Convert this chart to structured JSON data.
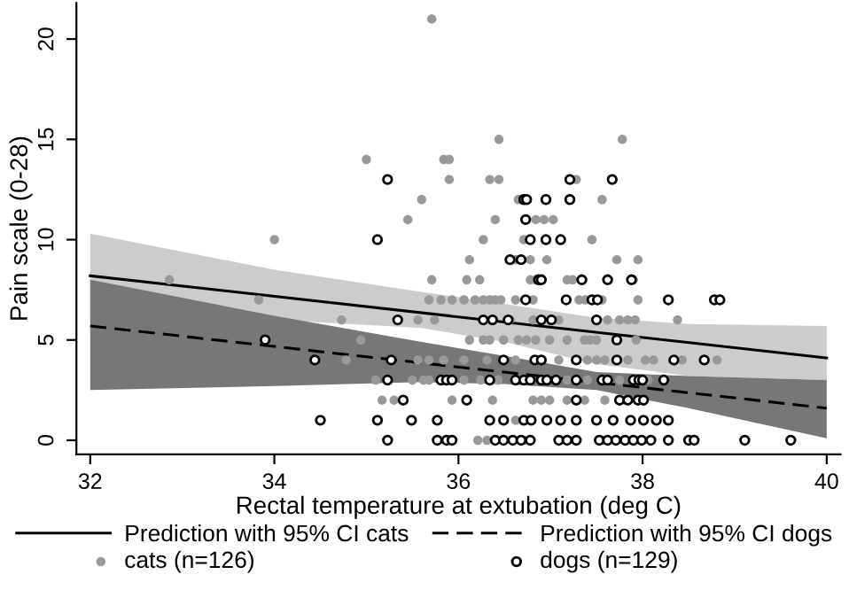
{
  "chart_data": {
    "type": "scatter",
    "xlabel": "Rectal temperature at extubation (deg C)",
    "ylabel": "Pain scale (0-28)",
    "xlim": [
      31.85,
      40.15
    ],
    "ylim": [
      -0.7,
      21.8
    ],
    "xticks": [
      32,
      34,
      36,
      38,
      40
    ],
    "yticks": [
      0,
      5,
      10,
      15,
      20
    ],
    "grid": false,
    "legend": "bottom",
    "series": [
      {
        "type": "line",
        "color": "#cccccc",
        "x": [
          32,
          34,
          35.6,
          36.5,
          37.5,
          38.5,
          40
        ],
        "values": [
          null,
          null,
          null,
          null,
          null,
          null,
          null
        ],
        "upper": [
          10.3,
          8.5,
          7.4,
          6.8,
          6.1,
          5.8,
          5.7
        ],
        "lower": [
          5.9,
          6.0,
          5.6,
          4.9,
          3.8,
          3.2,
          3.0
        ]
      },
      {
        "type": "line",
        "color": "#777777",
        "x": [
          32,
          34,
          35.6,
          36.5,
          37.5,
          38.5,
          40
        ],
        "values": [
          null,
          null,
          null,
          null,
          null,
          null,
          null
        ],
        "upper": [
          8.0,
          6.2,
          4.9,
          4.2,
          3.4,
          3.2,
          3.0
        ],
        "lower": [
          2.5,
          2.7,
          2.9,
          2.8,
          2.5,
          1.6,
          0.1
        ]
      },
      {
        "name": "Prediction with 95% CI cats",
        "type": "line",
        "line_style": "solid",
        "color": "#000000",
        "x": [
          32,
          40
        ],
        "values": [
          8.2,
          4.1
        ]
      },
      {
        "name": "Prediction with 95% CI dogs",
        "type": "line",
        "line_style": "dashed",
        "color": "#000000",
        "x": [
          32,
          40
        ],
        "values": [
          5.7,
          1.6
        ]
      },
      {
        "name": "cats (n=126)",
        "marker": "circle",
        "color": "#999999",
        "x": [
          32.86,
          34.0,
          33.83,
          34.73,
          34.94,
          34.78,
          35.0,
          35.45,
          35.6,
          35.1,
          35.17,
          35.3,
          35.56,
          35.56,
          35.5,
          35.62,
          35.71,
          36.44,
          37.78,
          35.84,
          35.9,
          35.9,
          36.34,
          36.44,
          37.28,
          36.65,
          37.56,
          36.4,
          36.84,
          36.93,
          37.03,
          36.27,
          36.71,
          37.45,
          36.12,
          36.62,
          36.78,
          36.96,
          37.72,
          37.95,
          35.71,
          36.09,
          36.23,
          36.78,
          36.84,
          37.18,
          37.24,
          37.9,
          35.68,
          35.81,
          35.93,
          36.06,
          36.18,
          36.27,
          36.34,
          36.4,
          36.46,
          36.62,
          36.81,
          37.31,
          37.38,
          37.56,
          37.95,
          35.74,
          36.56,
          36.81,
          37.09,
          37.62,
          37.75,
          37.84,
          37.92,
          38.38,
          36.12,
          36.27,
          36.34,
          36.49,
          36.65,
          36.74,
          36.84,
          36.99,
          37.18,
          37.37,
          37.43,
          37.5,
          37.93,
          35.68,
          35.84,
          36.06,
          36.31,
          36.62,
          37.09,
          37.4,
          37.5,
          37.59,
          37.84,
          38.03,
          38.12,
          38.43,
          38.81,
          35.68,
          36.06,
          36.24,
          36.43,
          37.18,
          37.4,
          37.75,
          38.06,
          35.93,
          36.37,
          36.81,
          36.9,
          36.99,
          37.18,
          37.37,
          37.59,
          37.81,
          36.62,
          36.21,
          36.31,
          36.71,
          37.56
        ],
        "values": [
          8,
          10,
          7,
          6,
          5,
          4,
          14,
          11,
          12,
          3,
          2,
          2,
          6,
          4,
          3,
          3,
          21,
          15,
          15,
          14,
          14,
          13,
          13,
          13,
          13,
          12,
          12,
          11,
          11,
          11,
          11,
          10,
          10,
          10,
          9,
          9,
          9,
          9,
          9,
          9,
          8,
          8,
          8,
          8,
          8,
          8,
          8,
          8,
          7,
          7,
          7,
          7,
          7,
          7,
          7,
          7,
          7,
          7,
          7,
          7,
          7,
          7,
          7,
          6,
          6,
          6,
          6,
          6,
          6,
          6,
          6,
          6,
          5,
          5,
          5,
          5,
          5,
          5,
          5,
          5,
          5,
          5,
          5,
          5,
          5,
          4,
          4,
          4,
          4,
          4,
          4,
          4,
          4,
          4,
          4,
          4,
          4,
          4,
          4,
          3,
          3,
          3,
          3,
          3,
          3,
          3,
          3,
          2,
          2,
          2,
          2,
          2,
          2,
          2,
          2,
          2,
          1,
          0,
          0,
          0,
          0
        ]
      },
      {
        "name": "dogs (n=129)",
        "marker": "circle",
        "color": "#000000",
        "x": [
          35.23,
          35.12,
          35.34,
          33.9,
          34.44,
          35.27,
          35.23,
          35.4,
          34.5,
          35.12,
          35.49,
          35.23,
          37.21,
          37.67,
          36.71,
          36.74,
          36.95,
          37.21,
          36.73,
          36.78,
          36.95,
          37.11,
          36.56,
          36.68,
          36.87,
          36.9,
          37.34,
          37.62,
          37.88,
          36.73,
          37.17,
          37.45,
          37.51,
          38.28,
          38.78,
          38.84,
          36.27,
          36.37,
          36.54,
          36.9,
          37.01,
          37.5,
          37.72,
          36.49,
          36.83,
          36.9,
          37.28,
          37.72,
          38.34,
          38.67,
          35.81,
          35.87,
          35.93,
          36.34,
          36.62,
          36.71,
          36.78,
          36.9,
          36.96,
          37.06,
          37.28,
          37.56,
          37.62,
          37.9,
          37.96,
          38.0,
          38.23,
          36.09,
          37.28,
          37.75,
          37.84,
          37.95,
          38.01,
          35.77,
          36.34,
          36.49,
          36.71,
          36.79,
          36.96,
          37.11,
          37.28,
          37.5,
          37.68,
          37.87,
          38.01,
          38.15,
          38.28,
          35.77,
          35.87,
          35.93,
          36.4,
          36.49,
          36.59,
          36.68,
          36.78,
          37.09,
          37.18,
          37.28,
          37.53,
          37.62,
          37.71,
          37.81,
          37.9,
          37.99,
          38.09,
          38.28,
          38.5,
          38.56,
          39.11,
          39.61
        ],
        "values": [
          13,
          10,
          6,
          5,
          4,
          4,
          3,
          2,
          1,
          1,
          1,
          0,
          13,
          13,
          12,
          12,
          12,
          12,
          11,
          10,
          10,
          10,
          9,
          9,
          8,
          8,
          8,
          8,
          8,
          7,
          7,
          7,
          7,
          7,
          7,
          7,
          6,
          6,
          6,
          6,
          6,
          6,
          5,
          4,
          4,
          4,
          4,
          4,
          4,
          4,
          3,
          3,
          3,
          3,
          3,
          3,
          3,
          3,
          3,
          3,
          3,
          3,
          3,
          3,
          3,
          3,
          3,
          2,
          2,
          2,
          2,
          2,
          2,
          1,
          1,
          1,
          1,
          1,
          1,
          1,
          1,
          1,
          1,
          1,
          1,
          1,
          1,
          0,
          0,
          0,
          0,
          0,
          0,
          0,
          0,
          0,
          0,
          0,
          0,
          0,
          0,
          0,
          0,
          0,
          0,
          0,
          0,
          0,
          0,
          0
        ]
      }
    ]
  }
}
